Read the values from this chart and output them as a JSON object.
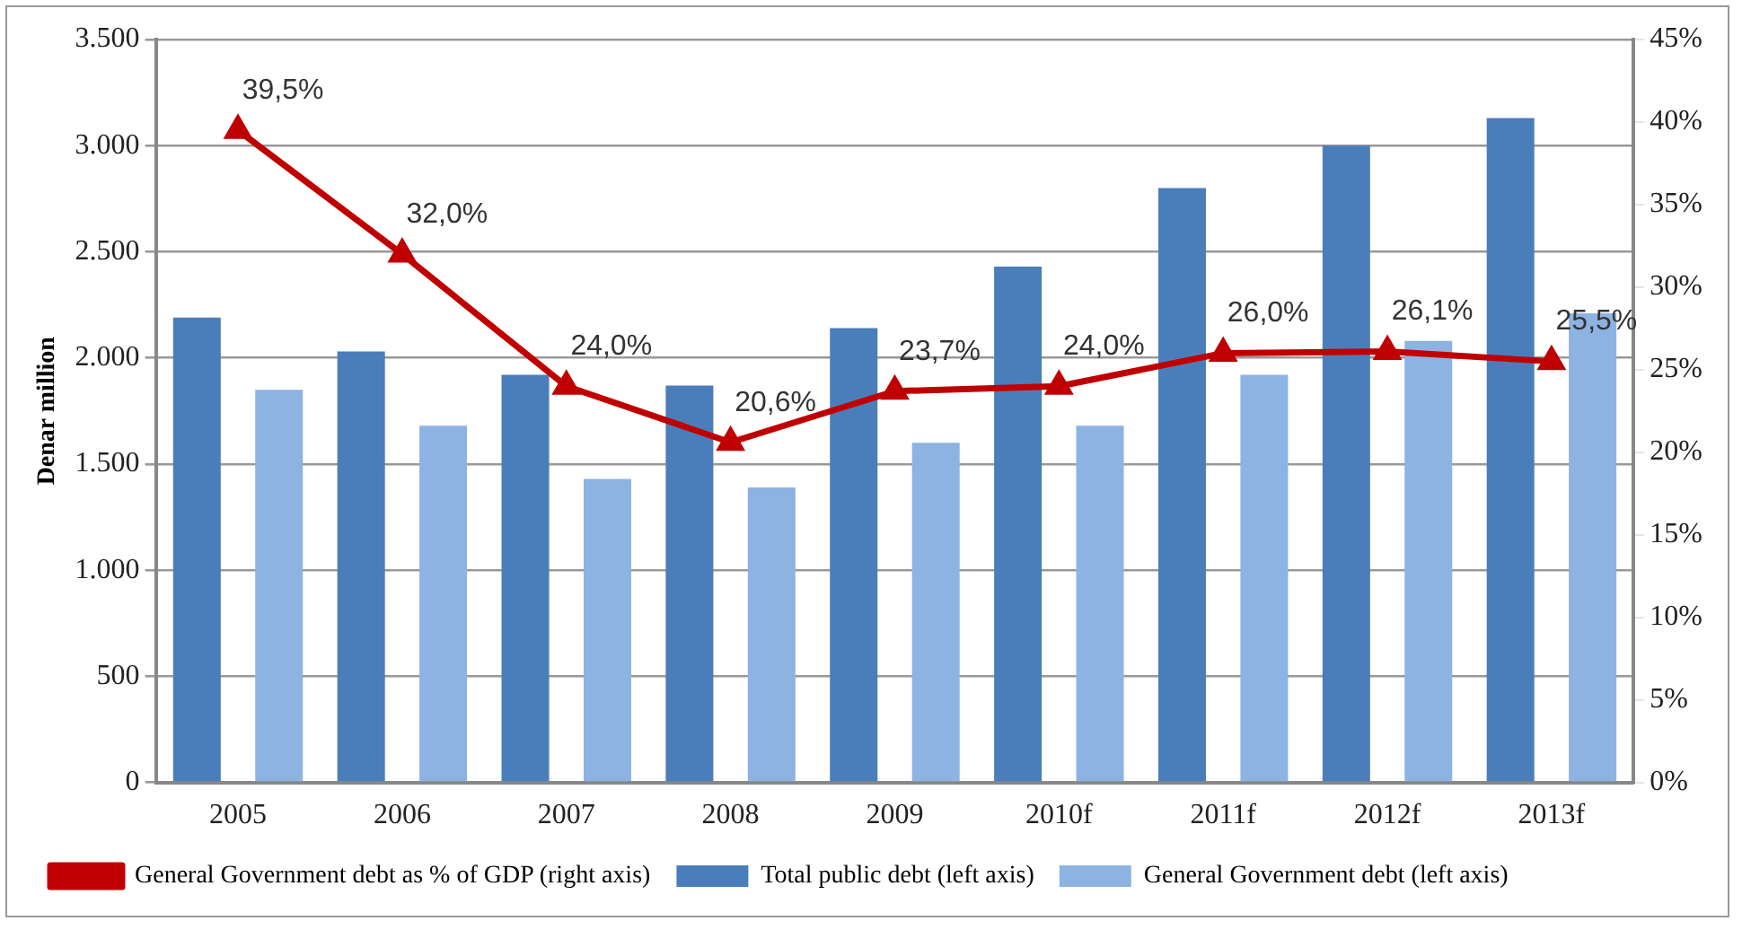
{
  "chart_data": {
    "type": "bar",
    "ylabel": "Denar million",
    "categories": [
      "2005",
      "2006",
      "2007",
      "2008",
      "2009",
      "2010f",
      "2011f",
      "2012f",
      "2013f"
    ],
    "series": [
      {
        "name": "Total public debt (left axis)",
        "color": "#4a7ebb",
        "values": [
          2190,
          2030,
          1920,
          1870,
          2140,
          2430,
          2800,
          3000,
          3130
        ]
      },
      {
        "name": "General Government debt (left axis)",
        "color": "#8db3e2",
        "values": [
          1850,
          1680,
          1430,
          1390,
          1600,
          1680,
          1920,
          2080,
          2210
        ]
      },
      {
        "name": "General Government debt as % of GDP (right axis)",
        "type": "line",
        "axis": "y2",
        "color": "#c00000",
        "marker": "triangle",
        "values": [
          39.5,
          32.0,
          24.0,
          20.6,
          23.7,
          24.0,
          26.0,
          26.1,
          25.5
        ],
        "value_labels": [
          "39,5%",
          "32,0%",
          "24,0%",
          "20,6%",
          "23,7%",
          "24,0%",
          "26,0%",
          "26,1%",
          "25,5%"
        ]
      }
    ],
    "ylim": [
      0,
      3500
    ],
    "yticks": [
      0,
      500,
      {
        "value": 1000,
        "label": "1.000"
      },
      {
        "value": 1500,
        "label": "1.500"
      },
      {
        "value": 2000,
        "label": "2.000"
      },
      {
        "value": 2500,
        "label": "2.500"
      },
      {
        "value": 3000,
        "label": "3.000"
      },
      {
        "value": 3500,
        "label": "3.500"
      }
    ],
    "y2lim": [
      0,
      45
    ],
    "y2ticks": [
      {
        "value": 0,
        "label": "0%"
      },
      {
        "value": 5,
        "label": "5%"
      },
      {
        "value": 10,
        "label": "10%"
      },
      {
        "value": 15,
        "label": "15%"
      },
      {
        "value": 20,
        "label": "20%"
      },
      {
        "value": 25,
        "label": "25%"
      },
      {
        "value": 30,
        "label": "30%"
      },
      {
        "value": 35,
        "label": "35%"
      },
      {
        "value": 40,
        "label": "40%"
      },
      {
        "value": 45,
        "label": "45%"
      }
    ],
    "grid": "y",
    "legend": "bottom"
  }
}
